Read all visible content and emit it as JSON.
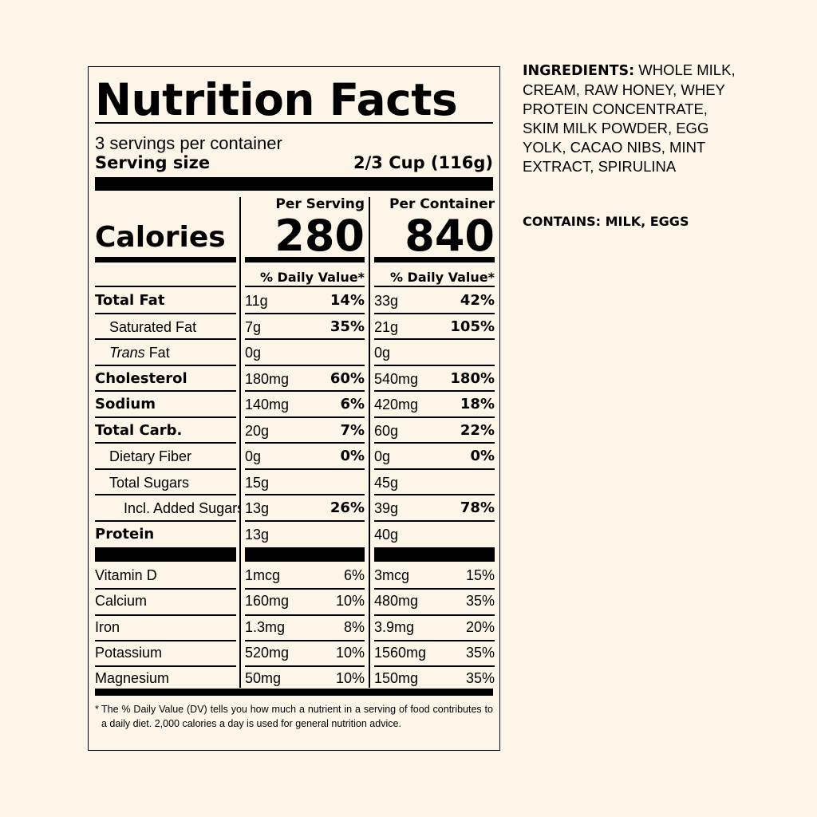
{
  "title": "Nutrition Facts",
  "servings_per_container": "3 servings per container",
  "serving_size_label": "Serving size",
  "serving_size_value": "2/3 Cup (116g)",
  "calories_label": "Calories",
  "per_serving_label": "Per Serving",
  "per_container_label": "Per Container",
  "calories_per_serving": "280",
  "calories_per_container": "840",
  "dv_header": "% Daily Value*",
  "nutrients": [
    {
      "name": "Total Fat",
      "style": "bold",
      "serving_amount": "11g",
      "serving_dv": "14%",
      "container_amount": "33g",
      "container_dv": "42%"
    },
    {
      "name": "Saturated Fat",
      "style": "indent",
      "serving_amount": "7g",
      "serving_dv": "35%",
      "container_amount": "21g",
      "container_dv": "105%"
    },
    {
      "name_italic": "Trans",
      "name": " Fat",
      "style": "indent-italic",
      "serving_amount": "0g",
      "serving_dv": "",
      "container_amount": "0g",
      "container_dv": ""
    },
    {
      "name": "Cholesterol",
      "style": "bold",
      "serving_amount": "180mg",
      "serving_dv": "60%",
      "container_amount": "540mg",
      "container_dv": "180%"
    },
    {
      "name": "Sodium",
      "style": "bold",
      "serving_amount": "140mg",
      "serving_dv": "6%",
      "container_amount": "420mg",
      "container_dv": "18%"
    },
    {
      "name": "Total Carb.",
      "style": "bold",
      "serving_amount": "20g",
      "serving_dv": "7%",
      "container_amount": "60g",
      "container_dv": "22%"
    },
    {
      "name": "Dietary Fiber",
      "style": "indent",
      "serving_amount": "0g",
      "serving_dv": "0%",
      "container_amount": "0g",
      "container_dv": "0%"
    },
    {
      "name": "Total Sugars",
      "style": "indent",
      "serving_amount": "15g",
      "serving_dv": "",
      "container_amount": "45g",
      "container_dv": ""
    },
    {
      "name": "Incl. Added Sugars",
      "style": "indent2",
      "serving_amount": "13g",
      "serving_dv": "26%",
      "container_amount": "39g",
      "container_dv": "78%"
    },
    {
      "name": "Protein",
      "style": "bold",
      "serving_amount": "13g",
      "serving_dv": "",
      "container_amount": "40g",
      "container_dv": ""
    }
  ],
  "vitamins": [
    {
      "name": "Vitamin D",
      "serving_amount": "1mcg",
      "serving_dv": "6%",
      "container_amount": "3mcg",
      "container_dv": "15%"
    },
    {
      "name": "Calcium",
      "serving_amount": "160mg",
      "serving_dv": "10%",
      "container_amount": "480mg",
      "container_dv": "35%"
    },
    {
      "name": "Iron",
      "serving_amount": "1.3mg",
      "serving_dv": "8%",
      "container_amount": "3.9mg",
      "container_dv": "20%"
    },
    {
      "name": "Potassium",
      "serving_amount": "520mg",
      "serving_dv": "10%",
      "container_amount": "1560mg",
      "container_dv": "35%"
    },
    {
      "name": "Magnesium",
      "serving_amount": "50mg",
      "serving_dv": "10%",
      "container_amount": "150mg",
      "container_dv": "35%"
    }
  ],
  "footnote_star": "*",
  "footnote": "The % Daily Value (DV) tells you how much a nutrient in a serving of food contributes to a daily diet. 2,000 calories a day is used for general nutrition advice.",
  "ingredients_label": "INGREDIENTS:",
  "ingredients_text": "WHOLE MILK, CREAM, RAW HONEY, WHEY PROTEIN CONCENTRATE, SKIM MILK POWDER, EGG YOLK, CACAO NIBS, MINT EXTRACT, SPIRULINA",
  "contains": "CONTAINS: MILK, EGGS"
}
